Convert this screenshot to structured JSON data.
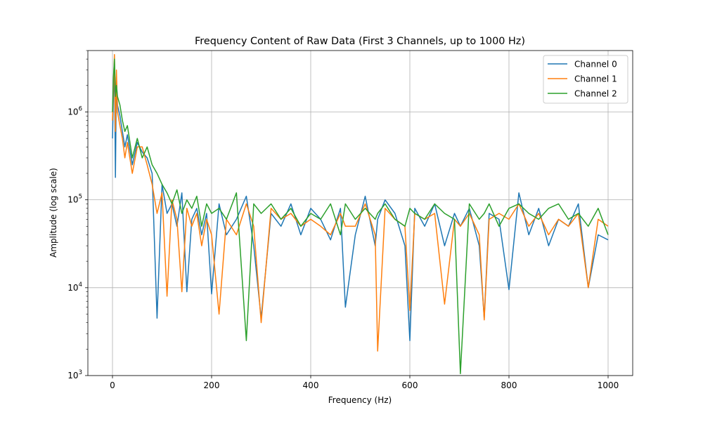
{
  "chart_data": {
    "type": "line",
    "title": "Frequency Content of Raw Data (First 3 Channels, up to 1000 Hz)",
    "xlabel": "Frequency (Hz)",
    "ylabel": "Amplitude (log scale)",
    "xlim": [
      0,
      1000
    ],
    "ylim": [
      1000,
      5000000
    ],
    "yscale": "log",
    "grid": true,
    "legend_position": "top-right",
    "x_ticks": [
      0,
      200,
      400,
      600,
      800,
      1000
    ],
    "y_ticks": [
      {
        "value": 1000,
        "base": "10",
        "exp": "3"
      },
      {
        "value": 10000,
        "base": "10",
        "exp": "4"
      },
      {
        "value": 100000,
        "base": "10",
        "exp": "5"
      },
      {
        "value": 1000000,
        "base": "10",
        "exp": "6"
      }
    ],
    "x": [
      0,
      2,
      4,
      6,
      8,
      10,
      15,
      20,
      25,
      30,
      40,
      50,
      60,
      70,
      80,
      90,
      100,
      110,
      120,
      130,
      140,
      150,
      160,
      170,
      180,
      190,
      200,
      215,
      230,
      250,
      270,
      285,
      300,
      320,
      340,
      360,
      380,
      400,
      420,
      440,
      460,
      470,
      490,
      510,
      530,
      535,
      550,
      570,
      590,
      600,
      610,
      630,
      650,
      670,
      690,
      702,
      720,
      740,
      750,
      760,
      780,
      800,
      820,
      840,
      860,
      880,
      900,
      920,
      940,
      960,
      980,
      1000
    ],
    "series": [
      {
        "name": "Channel 0",
        "color": "#1f77b4",
        "values": [
          500000,
          1500000,
          3500000,
          180000,
          2500000,
          1200000,
          900000,
          600000,
          400000,
          550000,
          250000,
          450000,
          350000,
          300000,
          200000,
          4500,
          150000,
          70000,
          90000,
          50000,
          120000,
          9000,
          60000,
          80000,
          40000,
          70000,
          8500,
          90000,
          40000,
          60000,
          110000,
          30000,
          4500,
          70000,
          50000,
          90000,
          40000,
          80000,
          60000,
          35000,
          80000,
          6000,
          40000,
          110000,
          30000,
          60000,
          100000,
          70000,
          30000,
          2500,
          80000,
          50000,
          90000,
          30000,
          70000,
          50000,
          80000,
          30000,
          4500,
          70000,
          60000,
          9500,
          120000,
          40000,
          80000,
          30000,
          60000,
          50000,
          90000,
          10000,
          40000,
          35000
        ]
      },
      {
        "name": "Channel 1",
        "color": "#ff7f0e",
        "values": [
          800000,
          2000000,
          4500000,
          600000,
          3000000,
          1000000,
          700000,
          500000,
          300000,
          450000,
          200000,
          400000,
          400000,
          250000,
          150000,
          70000,
          120000,
          8000,
          100000,
          60000,
          9000,
          80000,
          50000,
          70000,
          30000,
          60000,
          40000,
          5000,
          60000,
          40000,
          90000,
          50000,
          4000,
          80000,
          60000,
          70000,
          50000,
          60000,
          50000,
          40000,
          70000,
          50000,
          50000,
          90000,
          40000,
          1900,
          80000,
          60000,
          50000,
          5500,
          70000,
          60000,
          70000,
          6500,
          60000,
          50000,
          70000,
          40000,
          4300,
          60000,
          70000,
          60000,
          90000,
          50000,
          70000,
          40000,
          60000,
          50000,
          70000,
          10000,
          60000,
          50000
        ]
      },
      {
        "name": "Channel 2",
        "color": "#2ca02c",
        "values": [
          1000000,
          2500000,
          4000000,
          1500000,
          2000000,
          1500000,
          1200000,
          800000,
          600000,
          700000,
          300000,
          500000,
          300000,
          400000,
          250000,
          200000,
          150000,
          120000,
          90000,
          130000,
          70000,
          100000,
          80000,
          110000,
          50000,
          90000,
          70000,
          80000,
          60000,
          120000,
          2500,
          90000,
          70000,
          90000,
          60000,
          80000,
          50000,
          70000,
          60000,
          90000,
          40000,
          90000,
          60000,
          80000,
          60000,
          70000,
          90000,
          60000,
          50000,
          80000,
          70000,
          60000,
          90000,
          70000,
          60000,
          1050,
          90000,
          60000,
          70000,
          90000,
          50000,
          80000,
          90000,
          70000,
          60000,
          80000,
          90000,
          60000,
          70000,
          50000,
          80000,
          40000
        ]
      }
    ]
  }
}
